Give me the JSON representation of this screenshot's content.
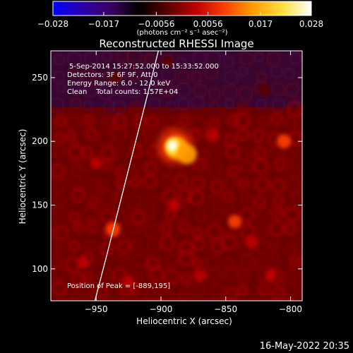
{
  "chart_data": {
    "type": "heatmap",
    "title": "Reconstructed RHESSI Image",
    "xlabel": "Heliocentric X (arcsec)",
    "ylabel": "Heliocentric Y (arcsec)",
    "xlim": [
      -985,
      -791
    ],
    "ylim": [
      75,
      271
    ],
    "xticks": [
      {
        "value": -950,
        "label": "−950"
      },
      {
        "value": -900,
        "label": "−900"
      },
      {
        "value": -850,
        "label": "−850"
      },
      {
        "value": -800,
        "label": "−800"
      }
    ],
    "yticks": [
      {
        "value": 100,
        "label": "100"
      },
      {
        "value": 150,
        "label": "150"
      },
      {
        "value": 200,
        "label": "200"
      },
      {
        "value": 250,
        "label": "250"
      }
    ],
    "colorbar": {
      "min": -0.028,
      "max": 0.028,
      "ticks": [
        {
          "value": -0.028,
          "label": "−0.028"
        },
        {
          "value": -0.017,
          "label": "−0.017"
        },
        {
          "value": -0.0056,
          "label": "−0.0056"
        },
        {
          "value": 0.0056,
          "label": "0.0056"
        },
        {
          "value": 0.017,
          "label": "0.017"
        },
        {
          "value": 0.028,
          "label": "0.028"
        }
      ],
      "unit_text": "(photons cm⁻² s⁻¹ asec⁻²)",
      "colors": [
        "#0000ff",
        "#2a00b0",
        "#3a0060",
        "#000000",
        "#5a0000",
        "#c00000",
        "#ff4000",
        "#ffa000",
        "#ffe040",
        "#ffffff"
      ]
    },
    "info_lines": [
      "5-Sep-2014 15:27:52.000 to 15:33:52.000",
      "Detectors: 3F 6F 9F, Att 0",
      "Energy Range: 6.0 - 12.0 keV",
      "Clean    Total counts: 1.57E+04"
    ],
    "peak_label": "Position of Peak = [-889,195]",
    "peak": {
      "x": -889,
      "y": 195,
      "value": 0.028
    },
    "sources": [
      {
        "x": -889,
        "y": 196,
        "value": 0.028
      },
      {
        "x": -880,
        "y": 190,
        "value": 0.016
      },
      {
        "x": -937,
        "y": 131,
        "value": 0.009
      },
      {
        "x": -805,
        "y": 200,
        "value": 0.008
      },
      {
        "x": -843,
        "y": 137,
        "value": 0.007
      },
      {
        "x": -890,
        "y": 150,
        "value": 0.005
      },
      {
        "x": -860,
        "y": 205,
        "value": 0.005
      },
      {
        "x": -950,
        "y": 183,
        "value": 0.005
      },
      {
        "x": -830,
        "y": 121,
        "value": 0.006
      },
      {
        "x": -870,
        "y": 95,
        "value": 0.005
      },
      {
        "x": -815,
        "y": 95,
        "value": 0.005
      },
      {
        "x": -960,
        "y": 105,
        "value": 0.004
      },
      {
        "x": -925,
        "y": 90,
        "value": 0.004
      },
      {
        "x": -935,
        "y": 250,
        "value": -0.006
      },
      {
        "x": -820,
        "y": 240,
        "value": -0.005
      },
      {
        "x": -895,
        "y": 262,
        "value": -0.004
      }
    ],
    "limb_color": "#ffffff",
    "limb_points": [
      {
        "x": -951,
        "y": 75
      },
      {
        "x": -942,
        "y": 110
      },
      {
        "x": -932,
        "y": 150
      },
      {
        "x": -922,
        "y": 190
      },
      {
        "x": -912,
        "y": 230
      },
      {
        "x": -902,
        "y": 271
      }
    ],
    "footer_date": "16-May-2022 20:35"
  }
}
